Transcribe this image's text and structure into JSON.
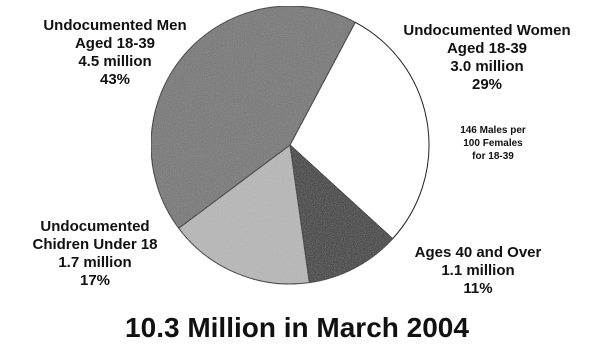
{
  "chart_data": {
    "type": "pie",
    "title": "10.3 Million in March 2004",
    "slices": [
      {
        "name": "Undocumented Women Aged 18-39",
        "lines": [
          "Undocumented Women",
          "Aged 18-39"
        ],
        "amount": "3.0 million",
        "percent": 29,
        "percent_label": "29%",
        "color": "#ffffff"
      },
      {
        "name": "Ages 40 and Over",
        "lines": [
          "Ages 40 and Over"
        ],
        "amount": "1.1 million",
        "percent": 11,
        "percent_label": "11%",
        "color": "#3a3a3a"
      },
      {
        "name": "Undocumented Chidren Under 18",
        "lines": [
          "Undocumented",
          "Chidren Under 18"
        ],
        "amount": "1.7 million",
        "percent": 17,
        "percent_label": "17%",
        "color": "#b8b8b8"
      },
      {
        "name": "Undocumented Men Aged 18-39",
        "lines": [
          "Undocumented Men",
          "Aged 18-39"
        ],
        "amount": "4.5 million",
        "percent": 43,
        "percent_label": "43%",
        "color": "#767676"
      }
    ],
    "annotation": [
      "146 Males per",
      "100 Females",
      "for 18-39"
    ]
  }
}
